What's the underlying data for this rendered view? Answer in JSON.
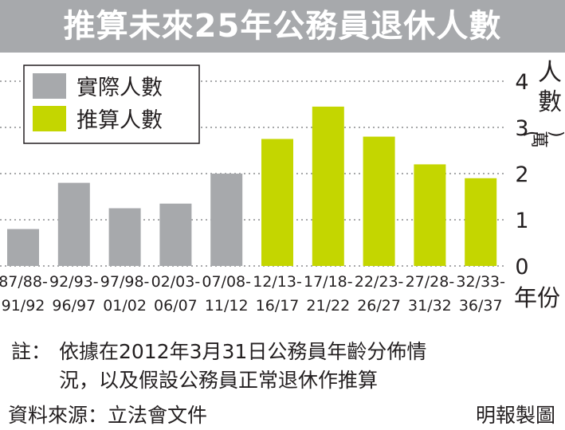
{
  "title": "推算未來25年公務員退休人數",
  "colors": {
    "actual": "#a7a9ac",
    "projected": "#c4d600",
    "title_bg": "#a7a9ac",
    "text": "#231f20"
  },
  "chart_data": {
    "type": "bar",
    "title": "推算未來25年公務員退休人數",
    "xlabel": "年份",
    "ylabel": "人數(萬)",
    "ylim": [
      0,
      4
    ],
    "yticks": [
      "0",
      "1",
      "2",
      "3",
      "4"
    ],
    "grid": true,
    "legend_position": "top-left",
    "categories": [
      [
        "87/88-",
        "91/92"
      ],
      [
        "92/93-",
        "96/97"
      ],
      [
        "97/98-",
        "01/02"
      ],
      [
        "02/03-",
        "06/07"
      ],
      [
        "07/08-",
        "11/12"
      ],
      [
        "12/13-",
        "16/17"
      ],
      [
        "17/18-",
        "21/22"
      ],
      [
        "22/23-",
        "26/27"
      ],
      [
        "27/28-",
        "31/32"
      ],
      [
        "32/33-",
        "36/37"
      ]
    ],
    "series": [
      {
        "name": "實際人數",
        "values": [
          0.8,
          1.8,
          1.25,
          1.35,
          2.0,
          null,
          null,
          null,
          null,
          null
        ]
      },
      {
        "name": "推算人數",
        "values": [
          null,
          null,
          null,
          null,
          null,
          2.75,
          3.45,
          2.8,
          2.2,
          1.9
        ]
      }
    ]
  },
  "footnote": {
    "label": "註：",
    "line1": "依據在2012年3月31日公務員年齡分佈情",
    "line2": "況，以及假設公務員正常退休作推算"
  },
  "source": "資料來源：立法會文件",
  "credit": "明報製圖"
}
